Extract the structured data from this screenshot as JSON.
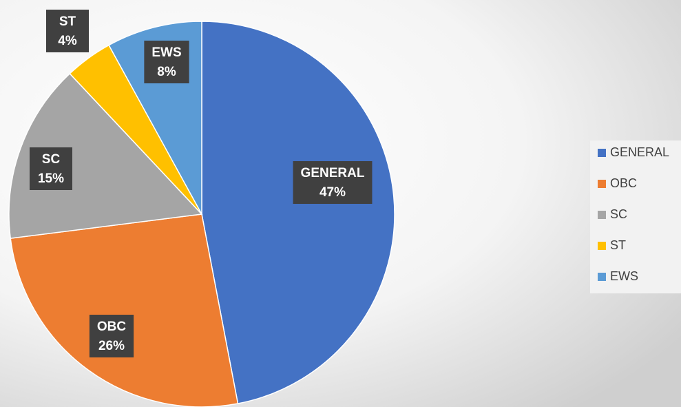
{
  "chart_data": {
    "type": "pie",
    "categories": [
      "GENERAL",
      "OBC",
      "SC",
      "ST",
      "EWS"
    ],
    "values": [
      47,
      26,
      15,
      4,
      8
    ],
    "value_labels": [
      "47%",
      "26%",
      "15%",
      "4%",
      "8%"
    ],
    "colors": [
      "#4472c4",
      "#ed7d31",
      "#a5a5a5",
      "#ffc000",
      "#5b9bd5"
    ],
    "legend": "right"
  }
}
